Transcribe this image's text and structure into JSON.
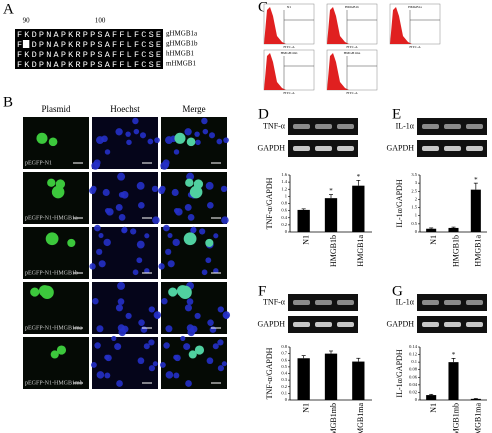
{
  "figure": {
    "panel_labels": [
      "A",
      "B",
      "C",
      "D",
      "E",
      "F",
      "G"
    ],
    "alignment": {
      "positions": [
        90,
        100
      ],
      "rows": [
        {
          "name": "gHMGB1a",
          "sequence": "FKDPNAPKRPPSAFFLFCSE"
        },
        {
          "name": "gHMGB1b",
          "sequence": "FEDPNAPKRPPSAFFLFCSE"
        },
        {
          "name": "hHMGB1",
          "sequence": "FKDPNAPKRPPSAFFLFCSE"
        },
        {
          "name": "mHMGB1",
          "sequence": "FKDPNAPKRPPSAFFLFCSE"
        }
      ]
    },
    "microscopy": {
      "columns": [
        "Plasmid",
        "Hoechst",
        "Merge"
      ],
      "rows": [
        "pEGFP-N1",
        "pEGFP-N1-HMGB1a",
        "pEGFP-N1-HMGB1b",
        "pEGFP-N1-HMGB1ma",
        "pEGFP-N1-HMGB1mb"
      ]
    },
    "flow": {
      "panels": [
        {
          "title": "N1",
          "x_label": "FITC-A"
        },
        {
          "title": "HMGB1b",
          "x_label": "FITC-A"
        },
        {
          "title": "HMGB1a",
          "x_label": "FITC-A"
        },
        {
          "title": "HMGB1mb",
          "x_label": "FITC-A"
        },
        {
          "title": "HMGB1ma",
          "x_label": "FITC-A"
        }
      ]
    },
    "gels": [
      {
        "bands": [
          "TNF-α",
          "GAPDH"
        ]
      },
      {
        "bands": [
          "IL-1α",
          "GAPDH"
        ]
      },
      {
        "bands": [
          "TNF-α",
          "GAPDH"
        ]
      },
      {
        "bands": [
          "IL-1α",
          "GAPDH"
        ]
      }
    ]
  },
  "chart_data": [
    {
      "type": "bar",
      "y_label": "TNF-α/GAPDH",
      "categories": [
        "N1",
        "HMGB1b",
        "HMGB1a"
      ],
      "values": [
        0.62,
        0.95,
        1.3
      ],
      "errors": [
        0.03,
        0.1,
        0.15
      ],
      "significance": [
        null,
        "*",
        "*"
      ],
      "ylim": [
        0,
        1.6
      ],
      "yticks": [
        0,
        0.2,
        0.4,
        0.6,
        0.8,
        1,
        1.2,
        1.4,
        1.6
      ],
      "color": "#000000"
    },
    {
      "type": "bar",
      "y_label": "IL-1α/GAPDH",
      "categories": [
        "N1",
        "HMGB1b",
        "HMGB1a"
      ],
      "values": [
        0.2,
        0.25,
        2.6
      ],
      "errors": [
        0.05,
        0.05,
        0.4
      ],
      "significance": [
        null,
        null,
        "*"
      ],
      "ylim": [
        0,
        3.5
      ],
      "yticks": [
        0,
        0.5,
        1,
        1.5,
        2,
        2.5,
        3,
        3.5
      ],
      "color": "#000000"
    },
    {
      "type": "bar",
      "y_label": "TNF-α/GAPDH",
      "categories": [
        "N1",
        "HMGB1mb",
        "HMGB1ma"
      ],
      "values": [
        0.63,
        0.7,
        0.58
      ],
      "errors": [
        0.04,
        0.04,
        0.05
      ],
      "significance": [
        null,
        null,
        null
      ],
      "ylim": [
        0,
        0.8
      ],
      "yticks": [
        0,
        0.1,
        0.2,
        0.3,
        0.4,
        0.5,
        0.6,
        0.7,
        0.8
      ],
      "color": "#000000"
    },
    {
      "type": "bar",
      "y_label": "IL-1α/GAPDH",
      "categories": [
        "N1",
        "HMGB1mb",
        "HMGB1ma"
      ],
      "values": [
        0.013,
        0.1,
        0.003
      ],
      "errors": [
        0.002,
        0.01,
        0.001
      ],
      "significance": [
        null,
        "*",
        null
      ],
      "ylim": [
        0,
        0.14
      ],
      "yticks": [
        0,
        0.02,
        0.04,
        0.06,
        0.08,
        0.1,
        0.12,
        0.14
      ],
      "color": "#000000"
    }
  ]
}
